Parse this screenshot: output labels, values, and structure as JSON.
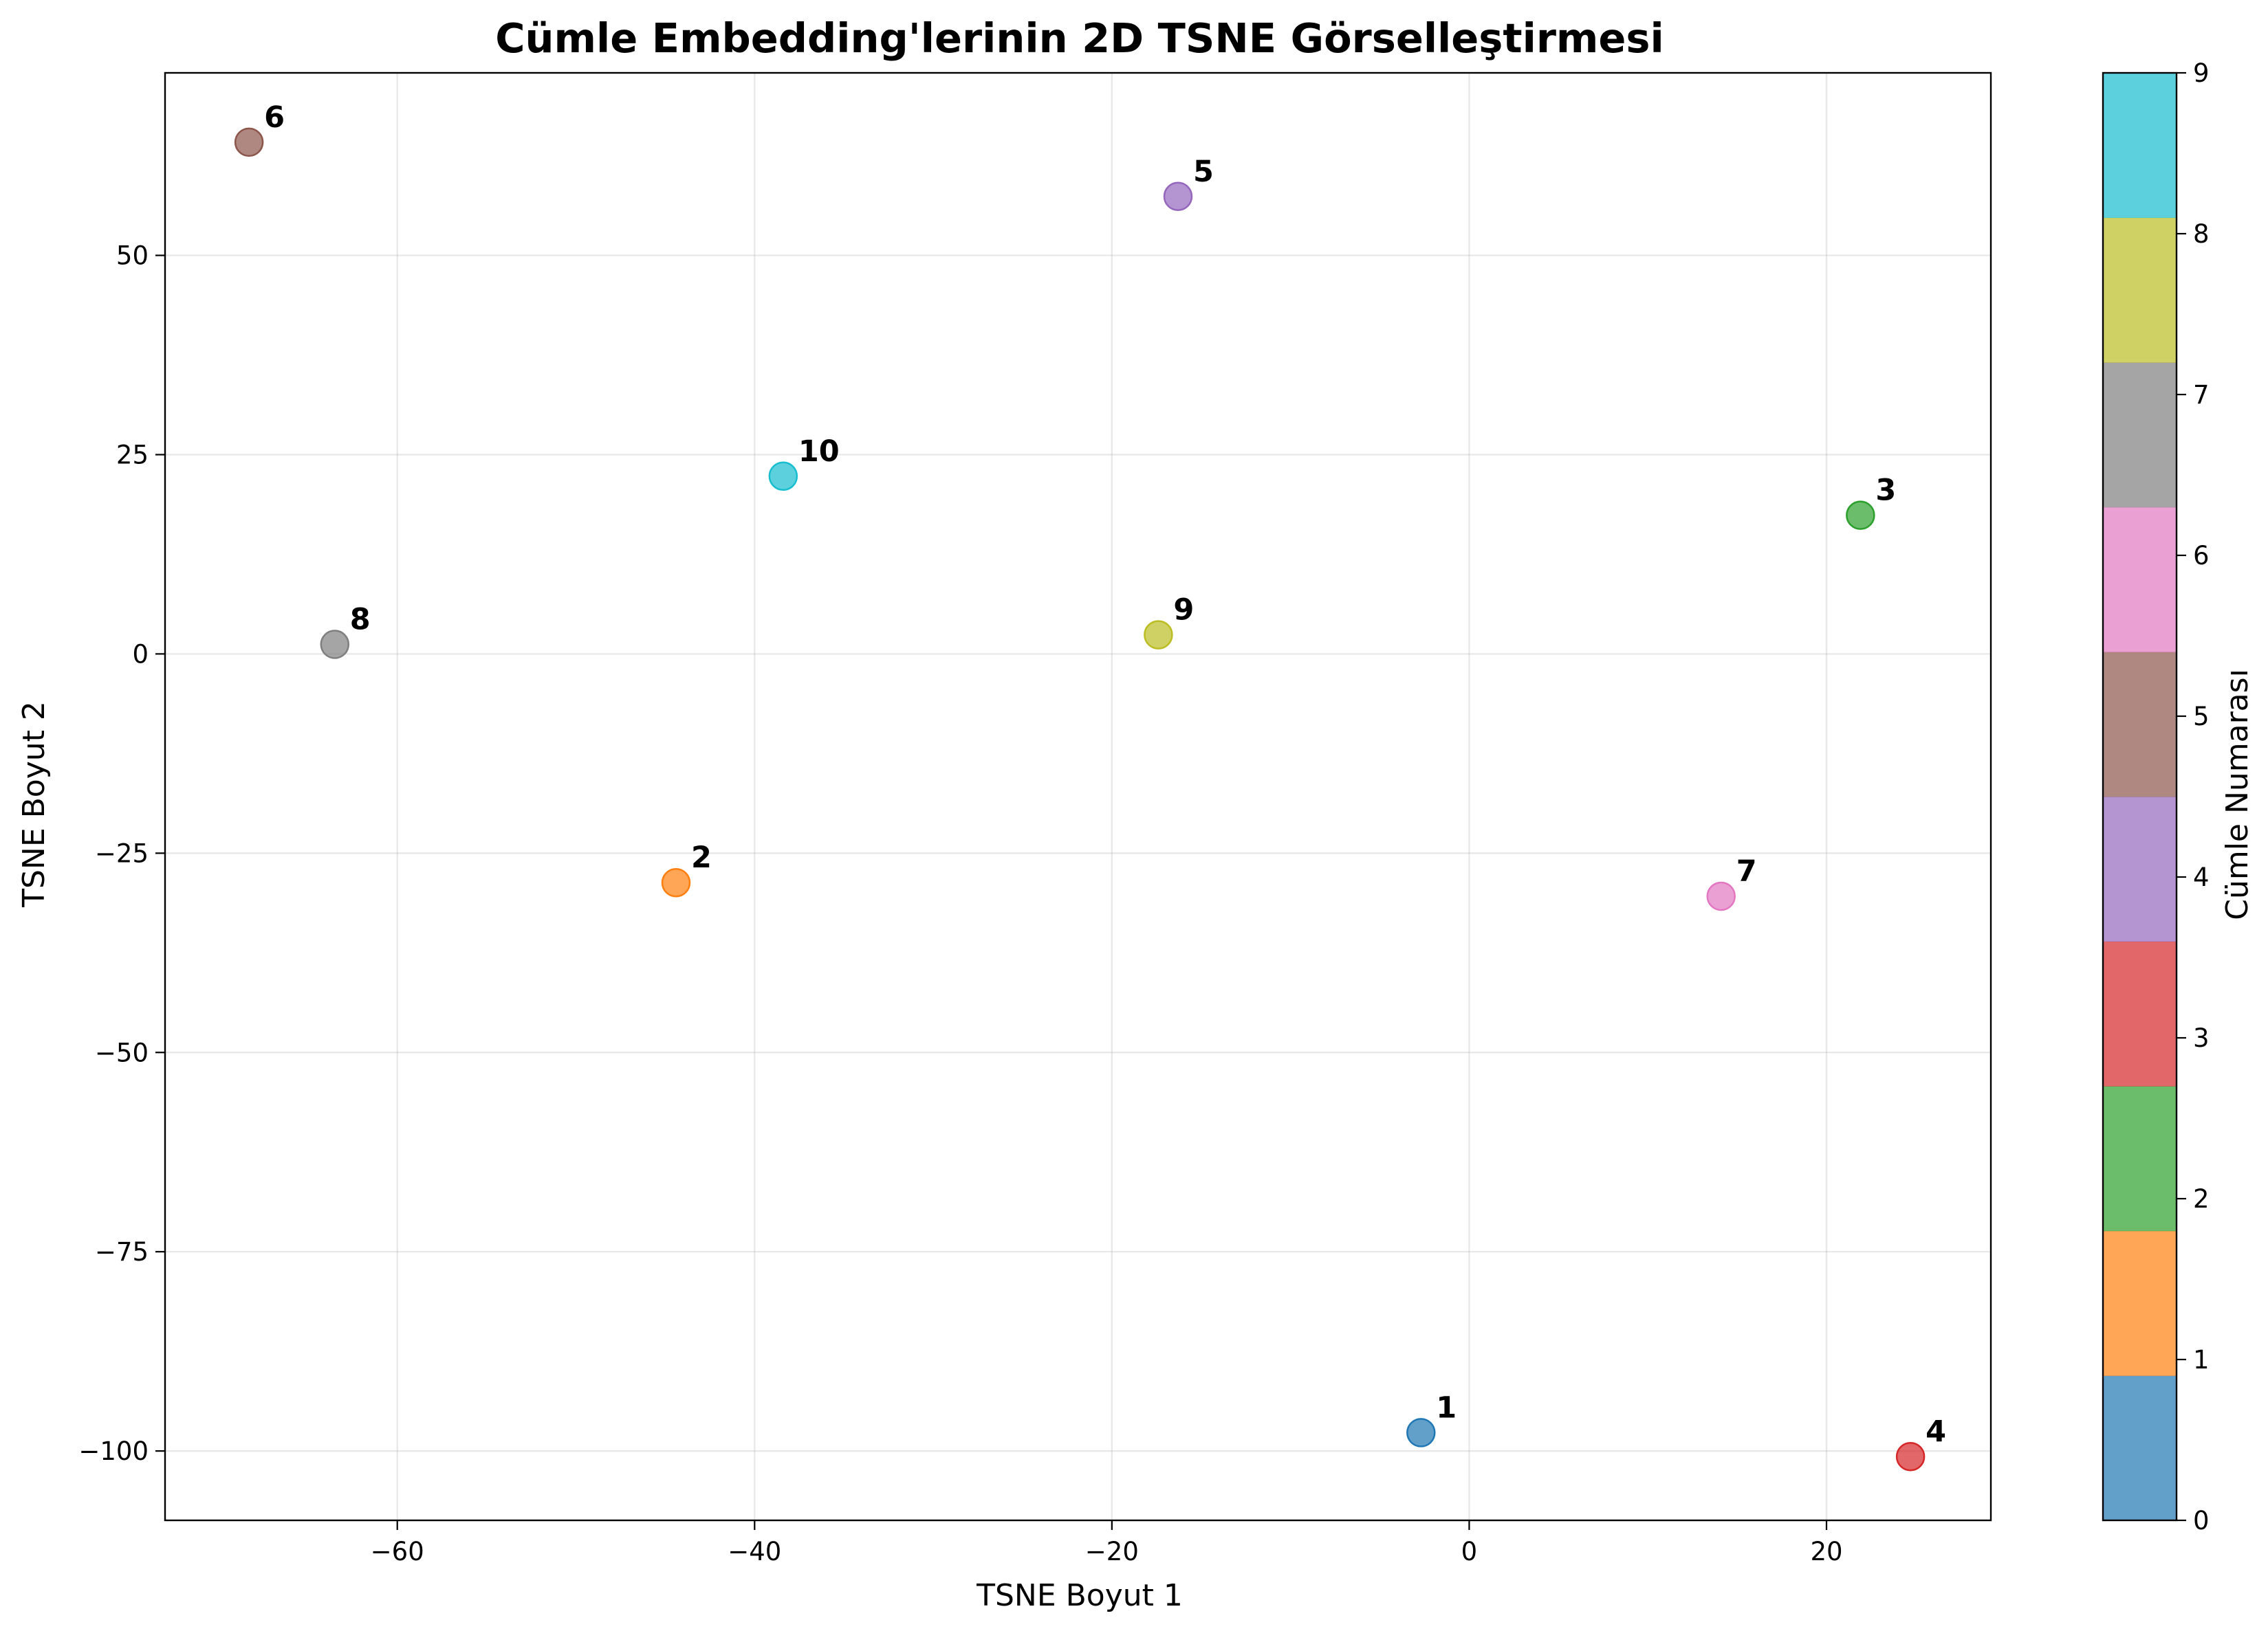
{
  "chart_data": {
    "type": "scatter",
    "title": "Cümle Embedding'lerinin 2D TSNE Görselleştirmesi",
    "xlabel": "TSNE Boyut 1",
    "ylabel": "TSNE Boyut 2",
    "xlim": [
      -73.0,
      29.2
    ],
    "ylim": [
      -108.7,
      72.9
    ],
    "xticks": [
      -60,
      -40,
      -20,
      0,
      20
    ],
    "yticks": [
      -100,
      -75,
      -50,
      -25,
      0,
      25,
      50
    ],
    "grid": true,
    "points": [
      {
        "label": "1",
        "x": -2.7,
        "y": -97.7,
        "color_index": 0
      },
      {
        "label": "2",
        "x": -44.4,
        "y": -28.7,
        "color_index": 1
      },
      {
        "label": "3",
        "x": 21.9,
        "y": 17.4,
        "color_index": 2
      },
      {
        "label": "4",
        "x": 24.7,
        "y": -100.7,
        "color_index": 3
      },
      {
        "label": "5",
        "x": -16.3,
        "y": 57.4,
        "color_index": 4
      },
      {
        "label": "6",
        "x": -68.3,
        "y": 64.2,
        "color_index": 5
      },
      {
        "label": "7",
        "x": 14.1,
        "y": -30.4,
        "color_index": 6
      },
      {
        "label": "8",
        "x": -63.5,
        "y": 1.2,
        "color_index": 7
      },
      {
        "label": "9",
        "x": -17.4,
        "y": 2.4,
        "color_index": 8
      },
      {
        "label": "10",
        "x": -38.4,
        "y": 22.3,
        "color_index": 9
      }
    ],
    "colorbar": {
      "label": "Cümle Numarası",
      "range": [
        0,
        9
      ],
      "ticks": [
        0,
        1,
        2,
        3,
        4,
        5,
        6,
        7,
        8,
        9
      ],
      "colors": [
        "#1f77b4",
        "#ff7f0e",
        "#2ca02c",
        "#d62728",
        "#9467bd",
        "#8c564b",
        "#e377c2",
        "#7f7f7f",
        "#bcbd22",
        "#17becf"
      ]
    },
    "point_alpha": 0.7
  }
}
